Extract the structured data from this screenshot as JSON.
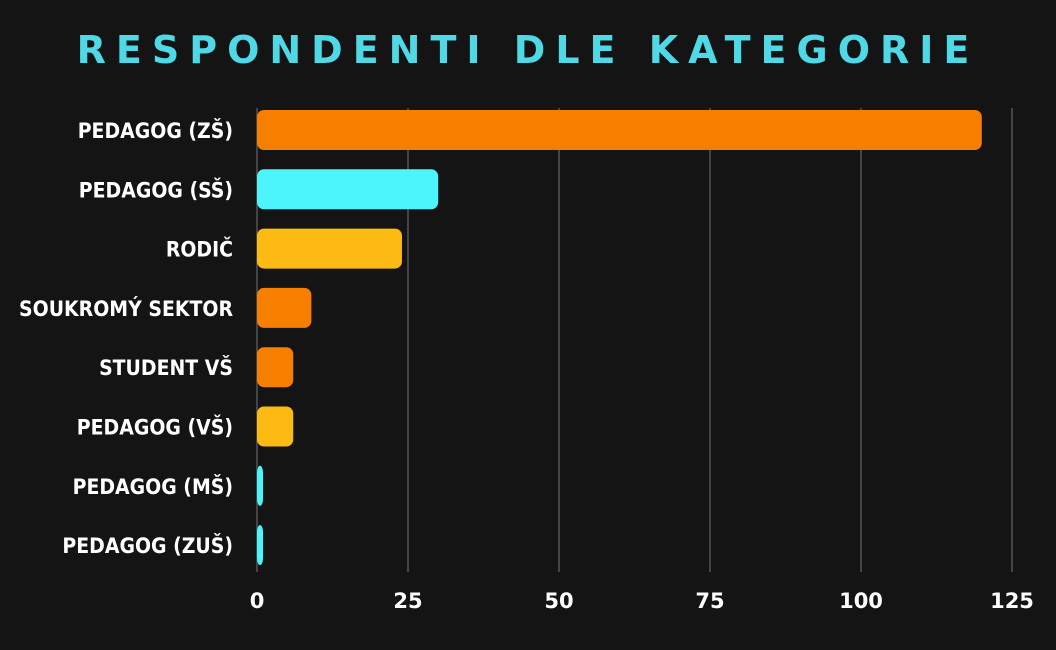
{
  "chart_data": {
    "type": "bar",
    "orientation": "horizontal",
    "title": "RESPONDENTI DLE KATEGORIE",
    "xlabel": "",
    "ylabel": "",
    "categories": [
      "PEDAGOG (ZŠ)",
      "PEDAGOG (SŠ)",
      "RODIČ",
      "SOUKROMÝ SEKTOR",
      "STUDENT VŠ",
      "PEDAGOG (VŠ)",
      "PEDAGOG (MŠ)",
      "PEDAGOG (ZUŠ)"
    ],
    "values": [
      120,
      30,
      24,
      9,
      6,
      6,
      1,
      1
    ],
    "bar_colors": [
      "#f77f00",
      "#4cf5fb",
      "#fcba12",
      "#f77f00",
      "#f77f00",
      "#fcba12",
      "#4cf5fb",
      "#4cf5fb"
    ],
    "xlim": [
      0,
      125
    ],
    "xticks": [
      0,
      25,
      50,
      75,
      100,
      125
    ],
    "grid": "vertical",
    "legend": "none"
  },
  "colors": {
    "background": "#141414",
    "title": "#4fd8e6",
    "text": "#ffffff",
    "grid": "#555555"
  }
}
